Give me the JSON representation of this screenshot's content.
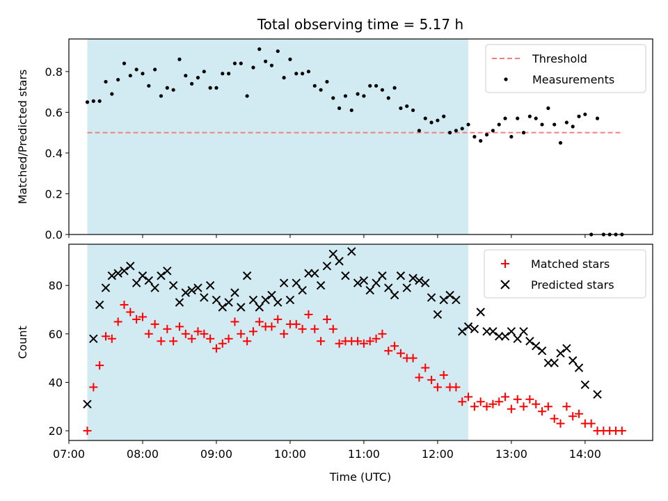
{
  "chart_data": [
    {
      "type": "scatter",
      "title": "Total observing time = 5.17 h",
      "xlabel": "",
      "ylabel": "Matched/Predicted stars",
      "xlim": [
        "07:00",
        "14:55"
      ],
      "ylim": [
        0,
        0.96
      ],
      "yticks": [
        "0.0",
        "0.2",
        "0.4",
        "0.6",
        "0.8"
      ],
      "xticks": [
        "07:00",
        "08:00",
        "09:00",
        "10:00",
        "11:00",
        "12:00",
        "13:00",
        "14:00"
      ],
      "shaded_span": [
        "07:15",
        "12:25"
      ],
      "shaded_color": "#add8e6",
      "threshold": {
        "name": "Threshold",
        "value": 0.5,
        "x_range": [
          "07:15",
          "14:30"
        ],
        "color": "#f08080"
      },
      "legend_position": "top-right",
      "series": [
        {
          "name": "Measurements",
          "color": "#000000",
          "x": [
            "07:15",
            "07:20",
            "07:25",
            "07:30",
            "07:35",
            "07:40",
            "07:45",
            "07:50",
            "07:55",
            "08:00",
            "08:05",
            "08:10",
            "08:15",
            "08:20",
            "08:25",
            "08:30",
            "08:35",
            "08:40",
            "08:45",
            "08:50",
            "08:55",
            "09:00",
            "09:05",
            "09:10",
            "09:15",
            "09:20",
            "09:25",
            "09:30",
            "09:35",
            "09:40",
            "09:45",
            "09:50",
            "09:55",
            "10:00",
            "10:05",
            "10:10",
            "10:15",
            "10:20",
            "10:25",
            "10:30",
            "10:35",
            "10:40",
            "10:45",
            "10:50",
            "10:55",
            "11:00",
            "11:05",
            "11:10",
            "11:15",
            "11:20",
            "11:25",
            "11:30",
            "11:35",
            "11:40",
            "11:45",
            "11:50",
            "11:55",
            "12:00",
            "12:05",
            "12:10",
            "12:15",
            "12:20",
            "12:25",
            "12:30",
            "12:35",
            "12:40",
            "12:45",
            "12:50",
            "12:55",
            "13:00",
            "13:05",
            "13:10",
            "13:15",
            "13:20",
            "13:25",
            "13:30",
            "13:35",
            "13:40",
            "13:45",
            "13:50",
            "13:55",
            "14:00",
            "14:05",
            "14:10",
            "14:15",
            "14:20",
            "14:25",
            "14:30"
          ],
          "y": [
            0.65,
            0.655,
            0.655,
            0.75,
            0.69,
            0.76,
            0.84,
            0.78,
            0.81,
            0.79,
            0.73,
            0.81,
            0.68,
            0.72,
            0.71,
            0.86,
            0.78,
            0.74,
            0.77,
            0.8,
            0.72,
            0.72,
            0.79,
            0.79,
            0.84,
            0.84,
            0.68,
            0.82,
            0.91,
            0.85,
            0.83,
            0.9,
            0.77,
            0.86,
            0.79,
            0.79,
            0.8,
            0.73,
            0.71,
            0.75,
            0.67,
            0.62,
            0.68,
            0.61,
            0.69,
            0.68,
            0.73,
            0.73,
            0.71,
            0.67,
            0.72,
            0.62,
            0.63,
            0.61,
            0.51,
            0.57,
            0.55,
            0.56,
            0.58,
            0.5,
            0.51,
            0.52,
            0.54,
            0.48,
            0.46,
            0.49,
            0.51,
            0.54,
            0.57,
            0.48,
            0.57,
            0.5,
            0.58,
            0.57,
            0.54,
            0.62,
            0.54,
            0.45,
            0.55,
            0.53,
            0.58,
            0.59,
            0.0,
            0.57,
            0.0,
            0.0,
            0.0,
            0.0
          ]
        }
      ]
    },
    {
      "type": "scatter",
      "title": "",
      "xlabel": "Time (UTC)",
      "ylabel": "Count",
      "xlim": [
        "07:00",
        "14:55"
      ],
      "ylim": [
        16,
        97
      ],
      "yticks": [
        "20",
        "40",
        "60",
        "80"
      ],
      "xticks": [
        "07:00",
        "08:00",
        "09:00",
        "10:00",
        "11:00",
        "12:00",
        "13:00",
        "14:00"
      ],
      "shaded_span": [
        "07:15",
        "12:25"
      ],
      "shaded_color": "#add8e6",
      "legend_position": "top-right",
      "series": [
        {
          "name": "Matched stars",
          "marker": "+",
          "color": "#ff0000",
          "x": [
            "07:15",
            "07:20",
            "07:25",
            "07:30",
            "07:35",
            "07:40",
            "07:45",
            "07:50",
            "07:55",
            "08:00",
            "08:05",
            "08:10",
            "08:15",
            "08:20",
            "08:25",
            "08:30",
            "08:35",
            "08:40",
            "08:45",
            "08:50",
            "08:55",
            "09:00",
            "09:05",
            "09:10",
            "09:15",
            "09:20",
            "09:25",
            "09:30",
            "09:35",
            "09:40",
            "09:45",
            "09:50",
            "09:55",
            "10:00",
            "10:05",
            "10:10",
            "10:15",
            "10:20",
            "10:25",
            "10:30",
            "10:35",
            "10:40",
            "10:45",
            "10:50",
            "10:55",
            "11:00",
            "11:05",
            "11:10",
            "11:15",
            "11:20",
            "11:25",
            "11:30",
            "11:35",
            "11:40",
            "11:45",
            "11:50",
            "11:55",
            "12:00",
            "12:05",
            "12:10",
            "12:15",
            "12:20",
            "12:25",
            "12:30",
            "12:35",
            "12:40",
            "12:45",
            "12:50",
            "12:55",
            "13:00",
            "13:05",
            "13:10",
            "13:15",
            "13:20",
            "13:25",
            "13:30",
            "13:35",
            "13:40",
            "13:45",
            "13:50",
            "13:55",
            "14:00",
            "14:05",
            "14:10",
            "14:15",
            "14:20",
            "14:25",
            "14:30"
          ],
          "y": [
            20,
            38,
            47,
            59,
            58,
            65,
            72,
            69,
            66,
            67,
            60,
            64,
            57,
            62,
            57,
            63,
            60,
            58,
            61,
            60,
            58,
            54,
            56,
            58,
            65,
            60,
            57,
            61,
            65,
            63,
            63,
            66,
            60,
            64,
            64,
            62,
            68,
            62,
            57,
            66,
            62,
            56,
            57,
            57,
            57,
            56,
            57,
            58,
            60,
            53,
            55,
            52,
            50,
            50,
            42,
            46,
            41,
            38,
            43,
            38,
            38,
            32,
            34,
            30,
            32,
            30,
            31,
            32,
            34,
            29,
            33,
            30,
            33,
            31,
            28,
            30,
            25,
            23,
            30,
            26,
            27,
            23,
            23,
            20,
            20,
            20,
            20,
            20
          ]
        },
        {
          "name": "Predicted stars",
          "marker": "x",
          "color": "#000000",
          "x": [
            "07:15",
            "07:20",
            "07:25",
            "07:30",
            "07:35",
            "07:40",
            "07:45",
            "07:50",
            "07:55",
            "08:00",
            "08:05",
            "08:10",
            "08:15",
            "08:20",
            "08:25",
            "08:30",
            "08:35",
            "08:40",
            "08:45",
            "08:50",
            "08:55",
            "09:00",
            "09:05",
            "09:10",
            "09:15",
            "09:20",
            "09:25",
            "09:30",
            "09:35",
            "09:40",
            "09:45",
            "09:50",
            "09:55",
            "10:00",
            "10:05",
            "10:10",
            "10:15",
            "10:20",
            "10:25",
            "10:30",
            "10:35",
            "10:40",
            "10:45",
            "10:50",
            "10:55",
            "11:00",
            "11:05",
            "11:10",
            "11:15",
            "11:20",
            "11:25",
            "11:30",
            "11:35",
            "11:40",
            "11:45",
            "11:50",
            "11:55",
            "12:00",
            "12:05",
            "12:10",
            "12:15",
            "12:20",
            "12:25",
            "12:30",
            "12:35",
            "12:40",
            "12:45",
            "12:50",
            "12:55",
            "13:00",
            "13:05",
            "13:10",
            "13:15",
            "13:20",
            "13:25",
            "13:30",
            "13:35",
            "13:40",
            "13:45",
            "13:50",
            "13:55",
            "14:00",
            "14:10"
          ],
          "y": [
            31,
            58,
            72,
            79,
            84,
            85,
            86,
            88,
            81,
            84,
            82,
            79,
            84,
            86,
            80,
            73,
            77,
            78,
            79,
            75,
            80,
            74,
            71,
            73,
            77,
            71,
            84,
            74,
            71,
            74,
            76,
            73,
            81,
            74,
            81,
            78,
            85,
            85,
            80,
            88,
            93,
            90,
            84,
            94,
            81,
            82,
            78,
            81,
            84,
            79,
            76,
            84,
            79,
            83,
            82,
            81,
            75,
            68,
            74,
            76,
            74,
            61,
            63,
            62,
            69,
            61,
            61,
            59,
            59,
            61,
            58,
            61,
            57,
            55,
            53,
            48,
            48,
            52,
            54,
            49,
            46,
            39,
            35
          ]
        }
      ]
    }
  ]
}
